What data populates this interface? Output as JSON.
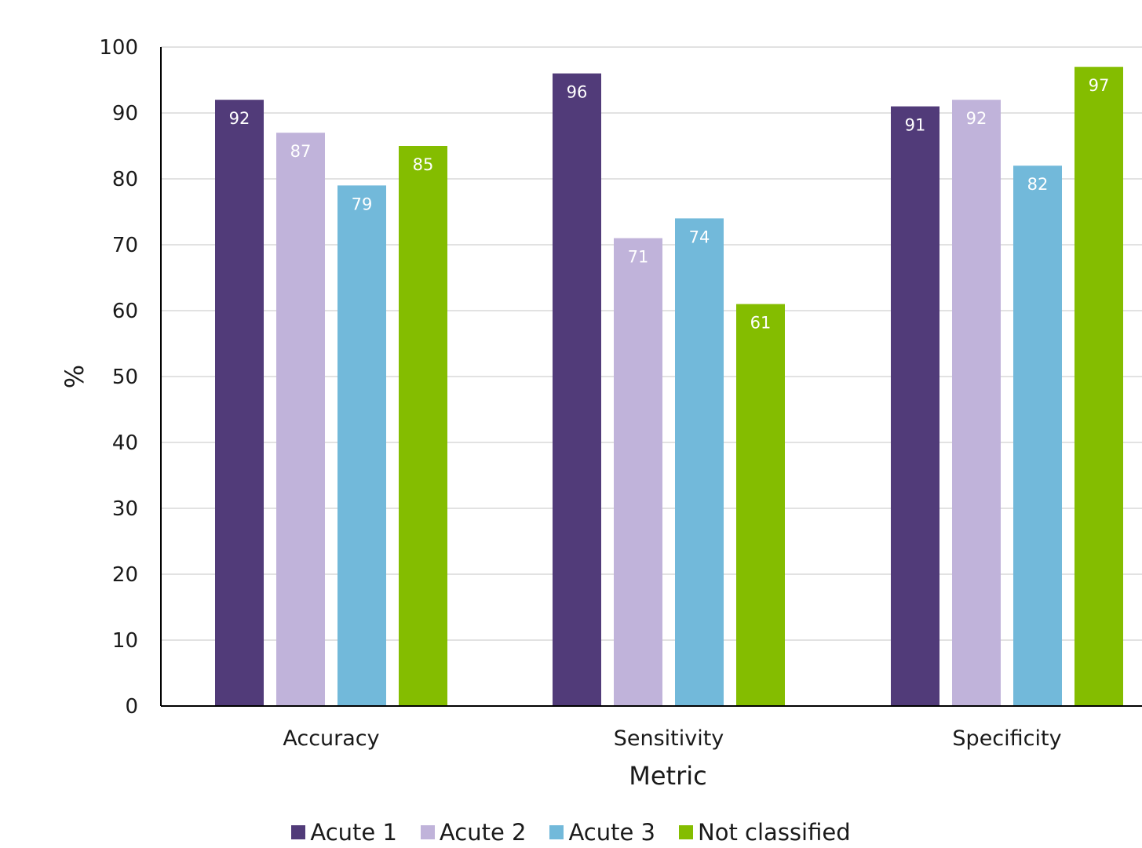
{
  "chart_data": {
    "type": "bar",
    "title": "",
    "xlabel": "Metric",
    "ylabel": "%",
    "ylim": [
      0,
      100
    ],
    "yticks": [
      0,
      10,
      20,
      30,
      40,
      50,
      60,
      70,
      80,
      90,
      100
    ],
    "grid": true,
    "legend_position": "bottom",
    "categories": [
      "Accuracy",
      "Sensitivity",
      "Specificity"
    ],
    "series": [
      {
        "name": "Acute 1",
        "color": "#513B79",
        "values": [
          92,
          96,
          91
        ]
      },
      {
        "name": "Acute 2",
        "color": "#C0B3DA",
        "values": [
          87,
          71,
          92
        ]
      },
      {
        "name": "Acute 3",
        "color": "#72B9DA",
        "values": [
          79,
          74,
          82
        ]
      },
      {
        "name": "Not classified",
        "color": "#84BD00",
        "values": [
          85,
          61,
          97
        ]
      }
    ]
  }
}
